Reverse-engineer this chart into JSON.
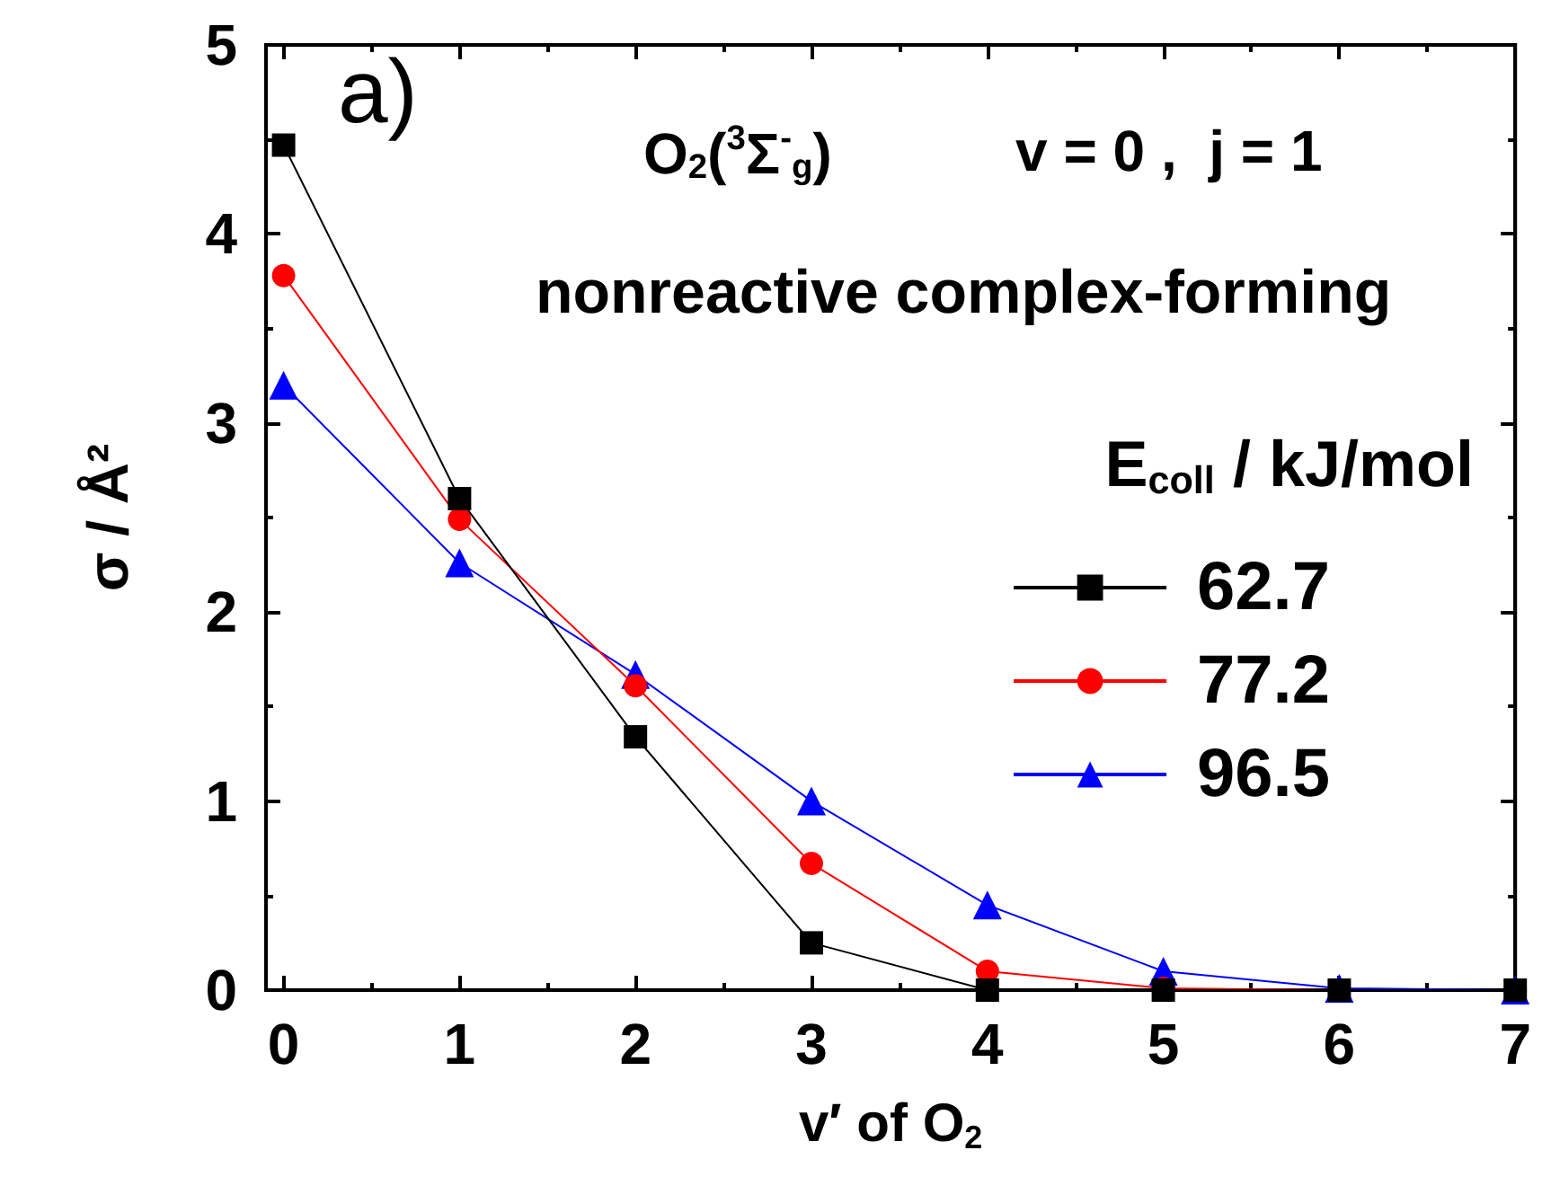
{
  "chart_data": {
    "type": "line",
    "xlabel": "v′ of O$_{2}$",
    "ylabel": "σ / Å²",
    "legend_title": "E$_{coll}$ / kJ/mol",
    "annotations": [
      "a)",
      "O$_{2}$($^{3}$Σ$^{-}$$_{g}$)",
      "v = 0 ,  j = 1",
      "nonreactive complex-forming"
    ],
    "x": [
      0,
      1,
      2,
      3,
      4,
      5,
      6,
      7
    ],
    "series": [
      {
        "name": "62.7",
        "color": "#000000",
        "marker": "square",
        "values": [
          4.47,
          2.6,
          1.34,
          0.25,
          0,
          0,
          0,
          0
        ]
      },
      {
        "name": "77.2",
        "color": "#ff0000",
        "marker": "circle",
        "values": [
          3.78,
          2.49,
          1.61,
          0.67,
          0.1,
          0.01,
          0,
          0
        ]
      },
      {
        "name": "96.5",
        "color": "#0000ff",
        "marker": "triangle",
        "values": [
          3.2,
          2.26,
          1.67,
          1.0,
          0.45,
          0.1,
          0.01,
          0
        ]
      }
    ],
    "xlim": [
      -0.1,
      7
    ],
    "xticks": [
      0,
      1,
      2,
      3,
      4,
      5,
      6,
      7
    ],
    "ylim": [
      0,
      5
    ],
    "yticks": [
      0,
      1,
      2,
      3,
      4,
      5
    ],
    "grid": false,
    "legend": "right",
    "line_style": "solid"
  }
}
